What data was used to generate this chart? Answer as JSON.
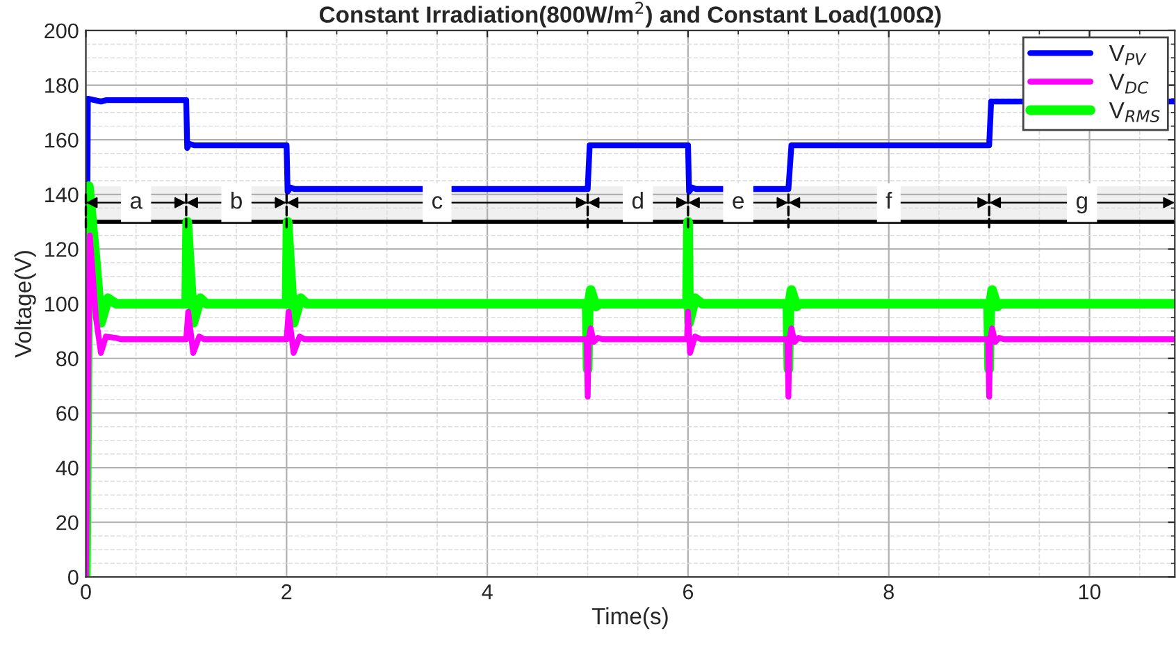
{
  "chart_data": {
    "type": "line",
    "title": "Constant Irradiation(800W/m$^{2}$) and Constant Load(100Ω)",
    "xlabel": "Time(s)",
    "ylabel": "Voltage(V)",
    "xlim": [
      0,
      10.85
    ],
    "xticks": [
      0,
      2,
      4,
      6,
      8,
      10
    ],
    "ylim": [
      0,
      200
    ],
    "yticks": [
      0,
      20,
      40,
      60,
      80,
      100,
      120,
      140,
      160,
      180,
      200
    ],
    "grid": true,
    "legend": "top right",
    "line_style": "solid",
    "marker": "none",
    "series": [
      {
        "name": "V$_{PV}$",
        "color": "#0000ff",
        "x": [
          0,
          0.02,
          0.03,
          0.15,
          0.2,
          1.0,
          1.01,
          1.03,
          1.08,
          2.0,
          2.01,
          2.04,
          2.08,
          5.0,
          5.02,
          6.0,
          6.01,
          6.04,
          6.08,
          7.0,
          7.03,
          9.0,
          9.02,
          10.85
        ],
        "values": [
          0,
          175,
          175,
          174,
          174.5,
          174.5,
          157,
          158.5,
          158,
          158,
          141,
          142.5,
          142,
          142,
          158,
          158,
          141,
          142.5,
          142,
          142,
          158,
          158,
          174,
          174
        ]
      },
      {
        "name": "V$_{DC}$",
        "color": "#ff00ff",
        "x": [
          0,
          0.04,
          0.1,
          0.15,
          0.2,
          0.3,
          0.35,
          1.0,
          1.02,
          1.07,
          1.13,
          1.18,
          1.25,
          2.0,
          2.02,
          2.07,
          2.13,
          2.18,
          2.25,
          4.99,
          5.0,
          5.01,
          5.03,
          5.06,
          5.1,
          5.15,
          5.99,
          6.0,
          6.02,
          6.07,
          6.13,
          6.18,
          6.25,
          6.99,
          7.0,
          7.01,
          7.03,
          7.06,
          7.1,
          7.15,
          8.99,
          9.0,
          9.01,
          9.03,
          9.06,
          9.1,
          9.15,
          10.85
        ],
        "values": [
          0,
          125,
          95,
          82,
          88,
          87.5,
          87,
          87,
          97,
          82,
          88,
          87,
          87,
          87,
          97,
          82,
          88,
          87,
          87,
          87,
          66,
          87,
          91,
          86,
          87.5,
          87,
          87,
          97,
          82,
          88,
          87,
          87,
          87,
          87,
          66,
          87,
          91,
          86,
          87.5,
          87,
          87,
          66,
          87,
          91,
          86,
          87.5,
          87,
          87
        ]
      },
      {
        "name": "V$_{RMS}$",
        "color": "#00ff00",
        "x": [
          0,
          0.03,
          0.1,
          0.15,
          0.22,
          0.3,
          1.0,
          1.01,
          1.07,
          1.14,
          1.2,
          2.0,
          2.01,
          2.07,
          2.14,
          2.2,
          4.99,
          5.0,
          5.01,
          5.03,
          5.08,
          5.12,
          5.99,
          6.0,
          6.01,
          6.07,
          6.14,
          6.2,
          6.99,
          7.0,
          7.01,
          7.03,
          7.08,
          7.12,
          8.99,
          9.0,
          9.01,
          9.03,
          9.08,
          9.12,
          10.85
        ],
        "values": [
          0,
          143,
          115,
          93,
          102,
          100,
          100,
          130,
          93,
          102,
          100,
          100,
          130,
          93,
          102,
          100,
          100,
          76,
          100,
          105,
          99,
          100,
          100,
          130,
          93,
          102,
          100,
          100,
          100,
          76,
          100,
          105,
          99,
          100,
          100,
          76,
          100,
          105,
          99,
          100,
          100
        ]
      }
    ],
    "ref_lines": [
      {
        "axis": "y",
        "value": 130,
        "color": "#000000",
        "line_style": "solid"
      }
    ],
    "bands": [
      {
        "axis": "x",
        "from": 0,
        "to": 1,
        "label": "a"
      },
      {
        "axis": "x",
        "from": 1,
        "to": 2,
        "label": "b"
      },
      {
        "axis": "x",
        "from": 2,
        "to": 5,
        "label": "c"
      },
      {
        "axis": "x",
        "from": 5,
        "to": 6,
        "label": "d"
      },
      {
        "axis": "x",
        "from": 6,
        "to": 7,
        "label": "e"
      },
      {
        "axis": "x",
        "from": 7,
        "to": 9,
        "label": "f"
      },
      {
        "axis": "x",
        "from": 9,
        "to": 10.85,
        "label": "g"
      }
    ]
  }
}
